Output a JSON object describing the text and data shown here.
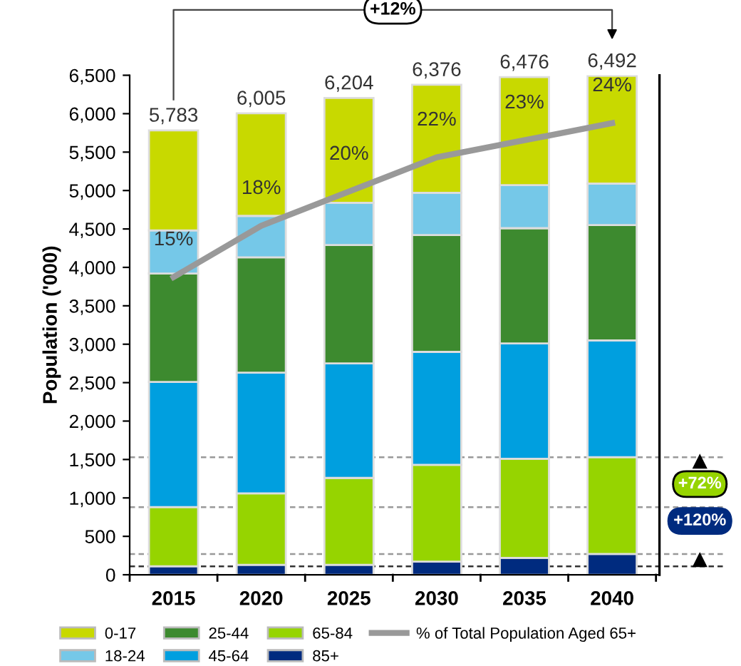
{
  "chart_data": {
    "type": "bar",
    "stacked": true,
    "categories": [
      "2015",
      "2020",
      "2025",
      "2030",
      "2035",
      "2040"
    ],
    "ylabel": "Population ('000)",
    "ylim": [
      0,
      6500
    ],
    "yticks": [
      0,
      {
        "value": 500,
        "label": "500"
      },
      {
        "value": 1000,
        "label": "1,000"
      },
      {
        "value": 1500,
        "label": "1,500"
      },
      {
        "value": 2000,
        "label": "2,000"
      },
      {
        "value": 2500,
        "label": "2,500"
      },
      {
        "value": 3000,
        "label": "3,000"
      },
      {
        "value": 3500,
        "label": "3,500"
      },
      {
        "value": 4000,
        "label": "4,000"
      },
      {
        "value": 4500,
        "label": "4,500"
      },
      {
        "value": 5000,
        "label": "5,000"
      },
      {
        "value": 5500,
        "label": "5,500"
      },
      {
        "value": 6000,
        "label": "6,000"
      },
      {
        "value": 6500,
        "label": "6,500"
      }
    ],
    "y2lim": [
      -2.4,
      26.8
    ],
    "series": [
      {
        "name": "85+",
        "color": "#002b7f",
        "values": [
          110,
          130,
          130,
          170,
          220,
          270
        ]
      },
      {
        "name": "65-84",
        "color": "#96d400",
        "values": [
          770,
          930,
          1130,
          1260,
          1290,
          1260
        ]
      },
      {
        "name": "45-64",
        "color": "#009fdf",
        "values": [
          1630,
          1570,
          1490,
          1470,
          1500,
          1520
        ]
      },
      {
        "name": "25-44",
        "color": "#3d8a2f",
        "values": [
          1410,
          1500,
          1540,
          1520,
          1500,
          1500
        ]
      },
      {
        "name": "18-24",
        "color": "#75c8e8",
        "values": [
          560,
          540,
          550,
          550,
          560,
          540
        ]
      },
      {
        "name": "0-17",
        "color": "#c8d900",
        "values": [
          1303,
          1335,
          1364,
          1406,
          1406,
          1402
        ]
      },
      {
        "name": "% of Total Population Aged 65+",
        "type": "line",
        "axis": "y2",
        "color": "#999999",
        "values": [
          15,
          18,
          20,
          22,
          23,
          24
        ],
        "value_labels": [
          "15%",
          "18%",
          "20%",
          "22%",
          "23%",
          "24%"
        ]
      }
    ],
    "totals": [
      "5,783",
      "6,005",
      "6,204",
      "6,376",
      "6,476",
      "6,492"
    ],
    "ref_lines": [
      {
        "axis": "y",
        "value": 110,
        "color": "#333333",
        "line_style": "dashed"
      },
      {
        "axis": "y",
        "value": 880,
        "color": "#999999",
        "line_style": "dashed"
      },
      {
        "axis": "y",
        "value": 270,
        "color": "#999999",
        "line_style": "dashed"
      },
      {
        "axis": "y",
        "value": 1530,
        "color": "#999999",
        "line_style": "dashed"
      }
    ],
    "annotations": [
      "+12%",
      "+72%",
      "+120%"
    ],
    "grid": false,
    "legend": "bottom",
    "marker": "none",
    "line_style": "solid"
  }
}
